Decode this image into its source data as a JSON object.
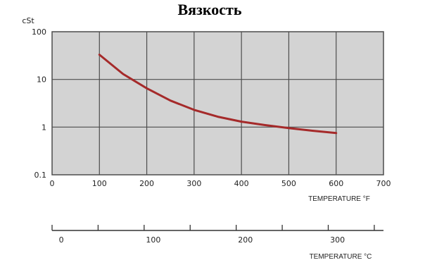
{
  "chart_data": {
    "type": "line",
    "title": "Вязкость",
    "ylabel": "cSt",
    "xlabel": "TEMPERATURE °F",
    "x2label": "TEMPERATURE °C",
    "yscale": "log",
    "ylim": [
      0.1,
      100
    ],
    "xlim": [
      0,
      700
    ],
    "x2lim": [
      -10,
      350
    ],
    "grid": true,
    "yticks": [
      "100",
      "10",
      "1",
      "0.1"
    ],
    "xticks": [
      "0",
      "100",
      "200",
      "300",
      "400",
      "500",
      "600",
      "700"
    ],
    "x2ticks": [
      "0",
      "100",
      "200",
      "300"
    ],
    "series": [
      {
        "x": [
          100,
          150,
          200,
          250,
          300,
          350,
          400,
          450,
          500,
          550,
          600
        ],
        "y": [
          33,
          13,
          6.5,
          3.6,
          2.3,
          1.65,
          1.3,
          1.1,
          0.95,
          0.84,
          0.75
        ],
        "color": "#a52a2a"
      }
    ],
    "colors": {
      "plot_bg": "#d3d3d3",
      "grid": "#4d4d4d",
      "border": "#4d4d4d"
    }
  }
}
